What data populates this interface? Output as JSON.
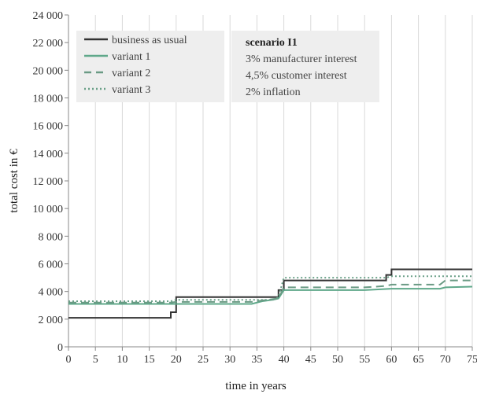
{
  "chart_data": {
    "type": "line",
    "step": true,
    "xlabel": "time in years",
    "ylabel": "total cost in €",
    "xlim": [
      0,
      75
    ],
    "ylim": [
      0,
      24000
    ],
    "x_ticks": [
      0,
      5,
      10,
      15,
      20,
      25,
      30,
      35,
      40,
      45,
      50,
      55,
      60,
      65,
      70,
      75
    ],
    "y_ticks": [
      0,
      2000,
      4000,
      6000,
      8000,
      10000,
      12000,
      14000,
      16000,
      18000,
      20000,
      22000,
      24000
    ],
    "y_tick_labels": [
      "0",
      "2 000",
      "4 000",
      "6 000",
      "8 000",
      "10 000",
      "12 000",
      "14 000",
      "16 000",
      "18 000",
      "20 000",
      "22 000",
      "24 000"
    ],
    "grid": {
      "vertical": true,
      "horizontal": false
    },
    "legend": {
      "placement": "top-left",
      "entries": [
        {
          "label": "business as usual",
          "style": "solid",
          "color": "#333333"
        },
        {
          "label": "variant 1",
          "style": "solid",
          "color": "#5fa88a"
        },
        {
          "label": "variant 2",
          "style": "dashed",
          "color": "#6a9a84"
        },
        {
          "label": "variant 3",
          "style": "dotted",
          "color": "#6aa088"
        }
      ]
    },
    "annotation": {
      "title": "scenario I1",
      "lines": [
        "3% manufacturer interest",
        "4,5% customer interest",
        "2% inflation"
      ]
    },
    "series": [
      {
        "name": "business as usual",
        "color": "#333333",
        "style": "solid",
        "points": [
          [
            0,
            2100
          ],
          [
            19,
            2100
          ],
          [
            19,
            2500
          ],
          [
            20,
            2500
          ],
          [
            20,
            3600
          ],
          [
            39,
            3600
          ],
          [
            39,
            4100
          ],
          [
            40,
            4100
          ],
          [
            40,
            4800
          ],
          [
            59,
            4800
          ],
          [
            59,
            5200
          ],
          [
            60,
            5200
          ],
          [
            60,
            5600
          ],
          [
            75,
            5600
          ]
        ]
      },
      {
        "name": "variant 1",
        "color": "#5fa88a",
        "style": "solid",
        "points": [
          [
            0,
            3100
          ],
          [
            19,
            3100
          ],
          [
            20,
            3100
          ],
          [
            34,
            3100
          ],
          [
            36,
            3300
          ],
          [
            38,
            3400
          ],
          [
            39,
            3500
          ],
          [
            40,
            4100
          ],
          [
            55,
            4100
          ],
          [
            60,
            4200
          ],
          [
            69,
            4200
          ],
          [
            70,
            4300
          ],
          [
            75,
            4350
          ]
        ]
      },
      {
        "name": "variant 2",
        "color": "#6a9a84",
        "style": "dashed",
        "points": [
          [
            0,
            3200
          ],
          [
            19,
            3200
          ],
          [
            20,
            3250
          ],
          [
            34,
            3250
          ],
          [
            36,
            3350
          ],
          [
            38,
            3450
          ],
          [
            39,
            3500
          ],
          [
            40,
            4300
          ],
          [
            55,
            4300
          ],
          [
            59,
            4400
          ],
          [
            60,
            4500
          ],
          [
            69,
            4500
          ],
          [
            70,
            4800
          ],
          [
            75,
            4800
          ]
        ]
      },
      {
        "name": "variant 3",
        "color": "#6aa088",
        "style": "dotted",
        "points": [
          [
            0,
            3300
          ],
          [
            19,
            3300
          ],
          [
            20,
            3400
          ],
          [
            38,
            3400
          ],
          [
            39,
            3600
          ],
          [
            40,
            5000
          ],
          [
            59,
            5000
          ],
          [
            60,
            5100
          ],
          [
            75,
            5100
          ]
        ]
      }
    ]
  }
}
